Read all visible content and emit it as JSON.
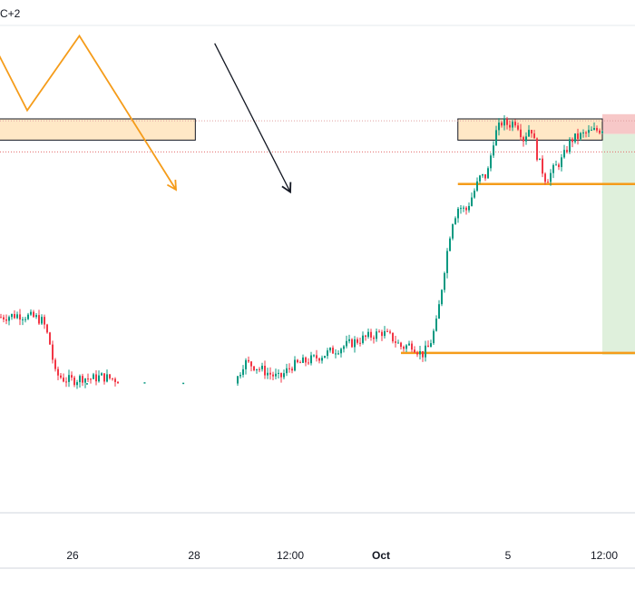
{
  "header": {
    "timezone_fragment": "C+2"
  },
  "chart_data": {
    "type": "candlestick",
    "title": "",
    "x_axis": {
      "ticks": [
        {
          "label": "26",
          "bold": false
        },
        {
          "label": "28",
          "bold": false
        },
        {
          "label": "12:00",
          "bold": false
        },
        {
          "label": "Oct",
          "bold": true
        },
        {
          "label": "5",
          "bold": false
        },
        {
          "label": "12:00",
          "bold": false
        }
      ]
    },
    "price_path": [
      [
        "Sep 24 00:00",
        48.0
      ],
      [
        "Sep 24 12:00",
        48.5
      ],
      [
        "Sep 25 00:00",
        47.8
      ],
      [
        "Sep 25 04:00",
        47.0
      ],
      [
        "Sep 25 08:00",
        43.0
      ],
      [
        "Sep 25 12:00",
        36.0
      ],
      [
        "Sep 25 18:00",
        34.8
      ],
      [
        "Sep 26 00:00",
        34.6
      ],
      [
        "Sep 26 08:00",
        35.2
      ],
      [
        "Sep 26 16:00",
        34.9
      ],
      [
        "Sep 27 00:00",
        35.4
      ],
      [
        "Sep 27 06:00",
        34.7
      ],
      [
        "Sep 28 18:00",
        33.8
      ],
      [
        "Sep 29 00:00",
        38.5
      ],
      [
        "Sep 29 06:00",
        37.5
      ],
      [
        "Sep 29 12:00",
        36.2
      ],
      [
        "Sep 29 18:00",
        35.0
      ],
      [
        "Sep 30 00:00",
        37.6
      ],
      [
        "Sep 30 06:00",
        39.2
      ],
      [
        "Sep 30 12:00",
        41.2
      ],
      [
        "Sep 30 18:00",
        43.2
      ],
      [
        "Oct 1 00:00",
        44.8
      ],
      [
        "Oct 1 06:00",
        43.6
      ],
      [
        "Oct 1 12:00",
        41.6
      ],
      [
        "Oct 1 18:00",
        42.2
      ],
      [
        "Oct 2 00:00",
        40.0
      ],
      [
        "Oct 2 06:00",
        41.8
      ],
      [
        "Oct 2 12:00",
        47.0
      ],
      [
        "Oct 2 18:00",
        58.0
      ],
      [
        "Oct 3 00:00",
        68.0
      ],
      [
        "Oct 3 06:00",
        71.5
      ],
      [
        "Oct 3 12:00",
        70.5
      ],
      [
        "Oct 3 18:00",
        74.0
      ],
      [
        "Oct 4 00:00",
        77.5
      ],
      [
        "Oct 4 06:00",
        78.0
      ],
      [
        "Oct 4 12:00",
        86.5
      ],
      [
        "Oct 4 18:00",
        89.2
      ],
      [
        "Oct 5 00:00",
        88.8
      ],
      [
        "Oct 5 06:00",
        89.6
      ],
      [
        "Oct 5 12:00",
        85.8
      ],
      [
        "Oct 5 18:00",
        88.6
      ],
      [
        "Oct 6 00:00",
        81.5
      ],
      [
        "Oct 6 06:00",
        77.0
      ],
      [
        "Oct 6 12:00",
        79.5
      ],
      [
        "Oct 6 18:00",
        81.5
      ],
      [
        "Oct 7 00:00",
        85.5
      ],
      [
        "Oct 7 06:00",
        87.0
      ],
      [
        "Oct 7 12:00",
        88.0
      ]
    ],
    "pre_gap_candles": [
      [
        "Sep 26 12:00",
        34.0
      ],
      [
        "Sep 27 14:00",
        34.2
      ],
      [
        "Sep 28 02:00",
        34.1
      ]
    ],
    "horizontal_levels": [
      {
        "price": 76.2,
        "from": "Oct 3 06:00",
        "color": "#f59c1a"
      },
      {
        "price": 40.4,
        "from": "Oct 1 12:00",
        "color": "#f59c1a"
      }
    ],
    "dotted_levels": [
      {
        "price": 89.6,
        "color": "#e0a0a0"
      },
      {
        "price": 83.0,
        "color": "#e26a6a"
      }
    ],
    "zones": [
      {
        "price_top": 90.0,
        "price_bottom": 85.5,
        "from": "Sep 23 18:00",
        "to": "Sep 28 06:00",
        "fill": "#ffe6c0",
        "stroke": "#131722"
      },
      {
        "price_top": 90.0,
        "price_bottom": 85.5,
        "from": "Oct 3 06:00",
        "to": "Oct 7 12:00",
        "fill": "#ffe6c0",
        "stroke": "#131722"
      }
    ],
    "position": {
      "entry": 86.8,
      "stop": 91.0,
      "target": 40.0,
      "from": "Oct 7 12:00",
      "stop_fill": "#f7c8c8",
      "target_fill": "#dff0dc"
    },
    "pattern_path": [
      [
        "Sep 23 18:00",
        107.6
      ],
      [
        "Sep 24 18:00",
        91.8
      ],
      [
        "Sep 26 06:00",
        107.6
      ],
      [
        "Sep 28 00:00",
        75.0
      ]
    ],
    "pattern_color": "#f59c1a",
    "projection_arrow": {
      "from": [
        "Sep 28 12:00",
        106.0
      ],
      "to": [
        "Sep 30 00:00",
        74.5
      ],
      "color": "#131722"
    },
    "colors": {
      "up": "#089981",
      "down": "#f23645"
    }
  }
}
